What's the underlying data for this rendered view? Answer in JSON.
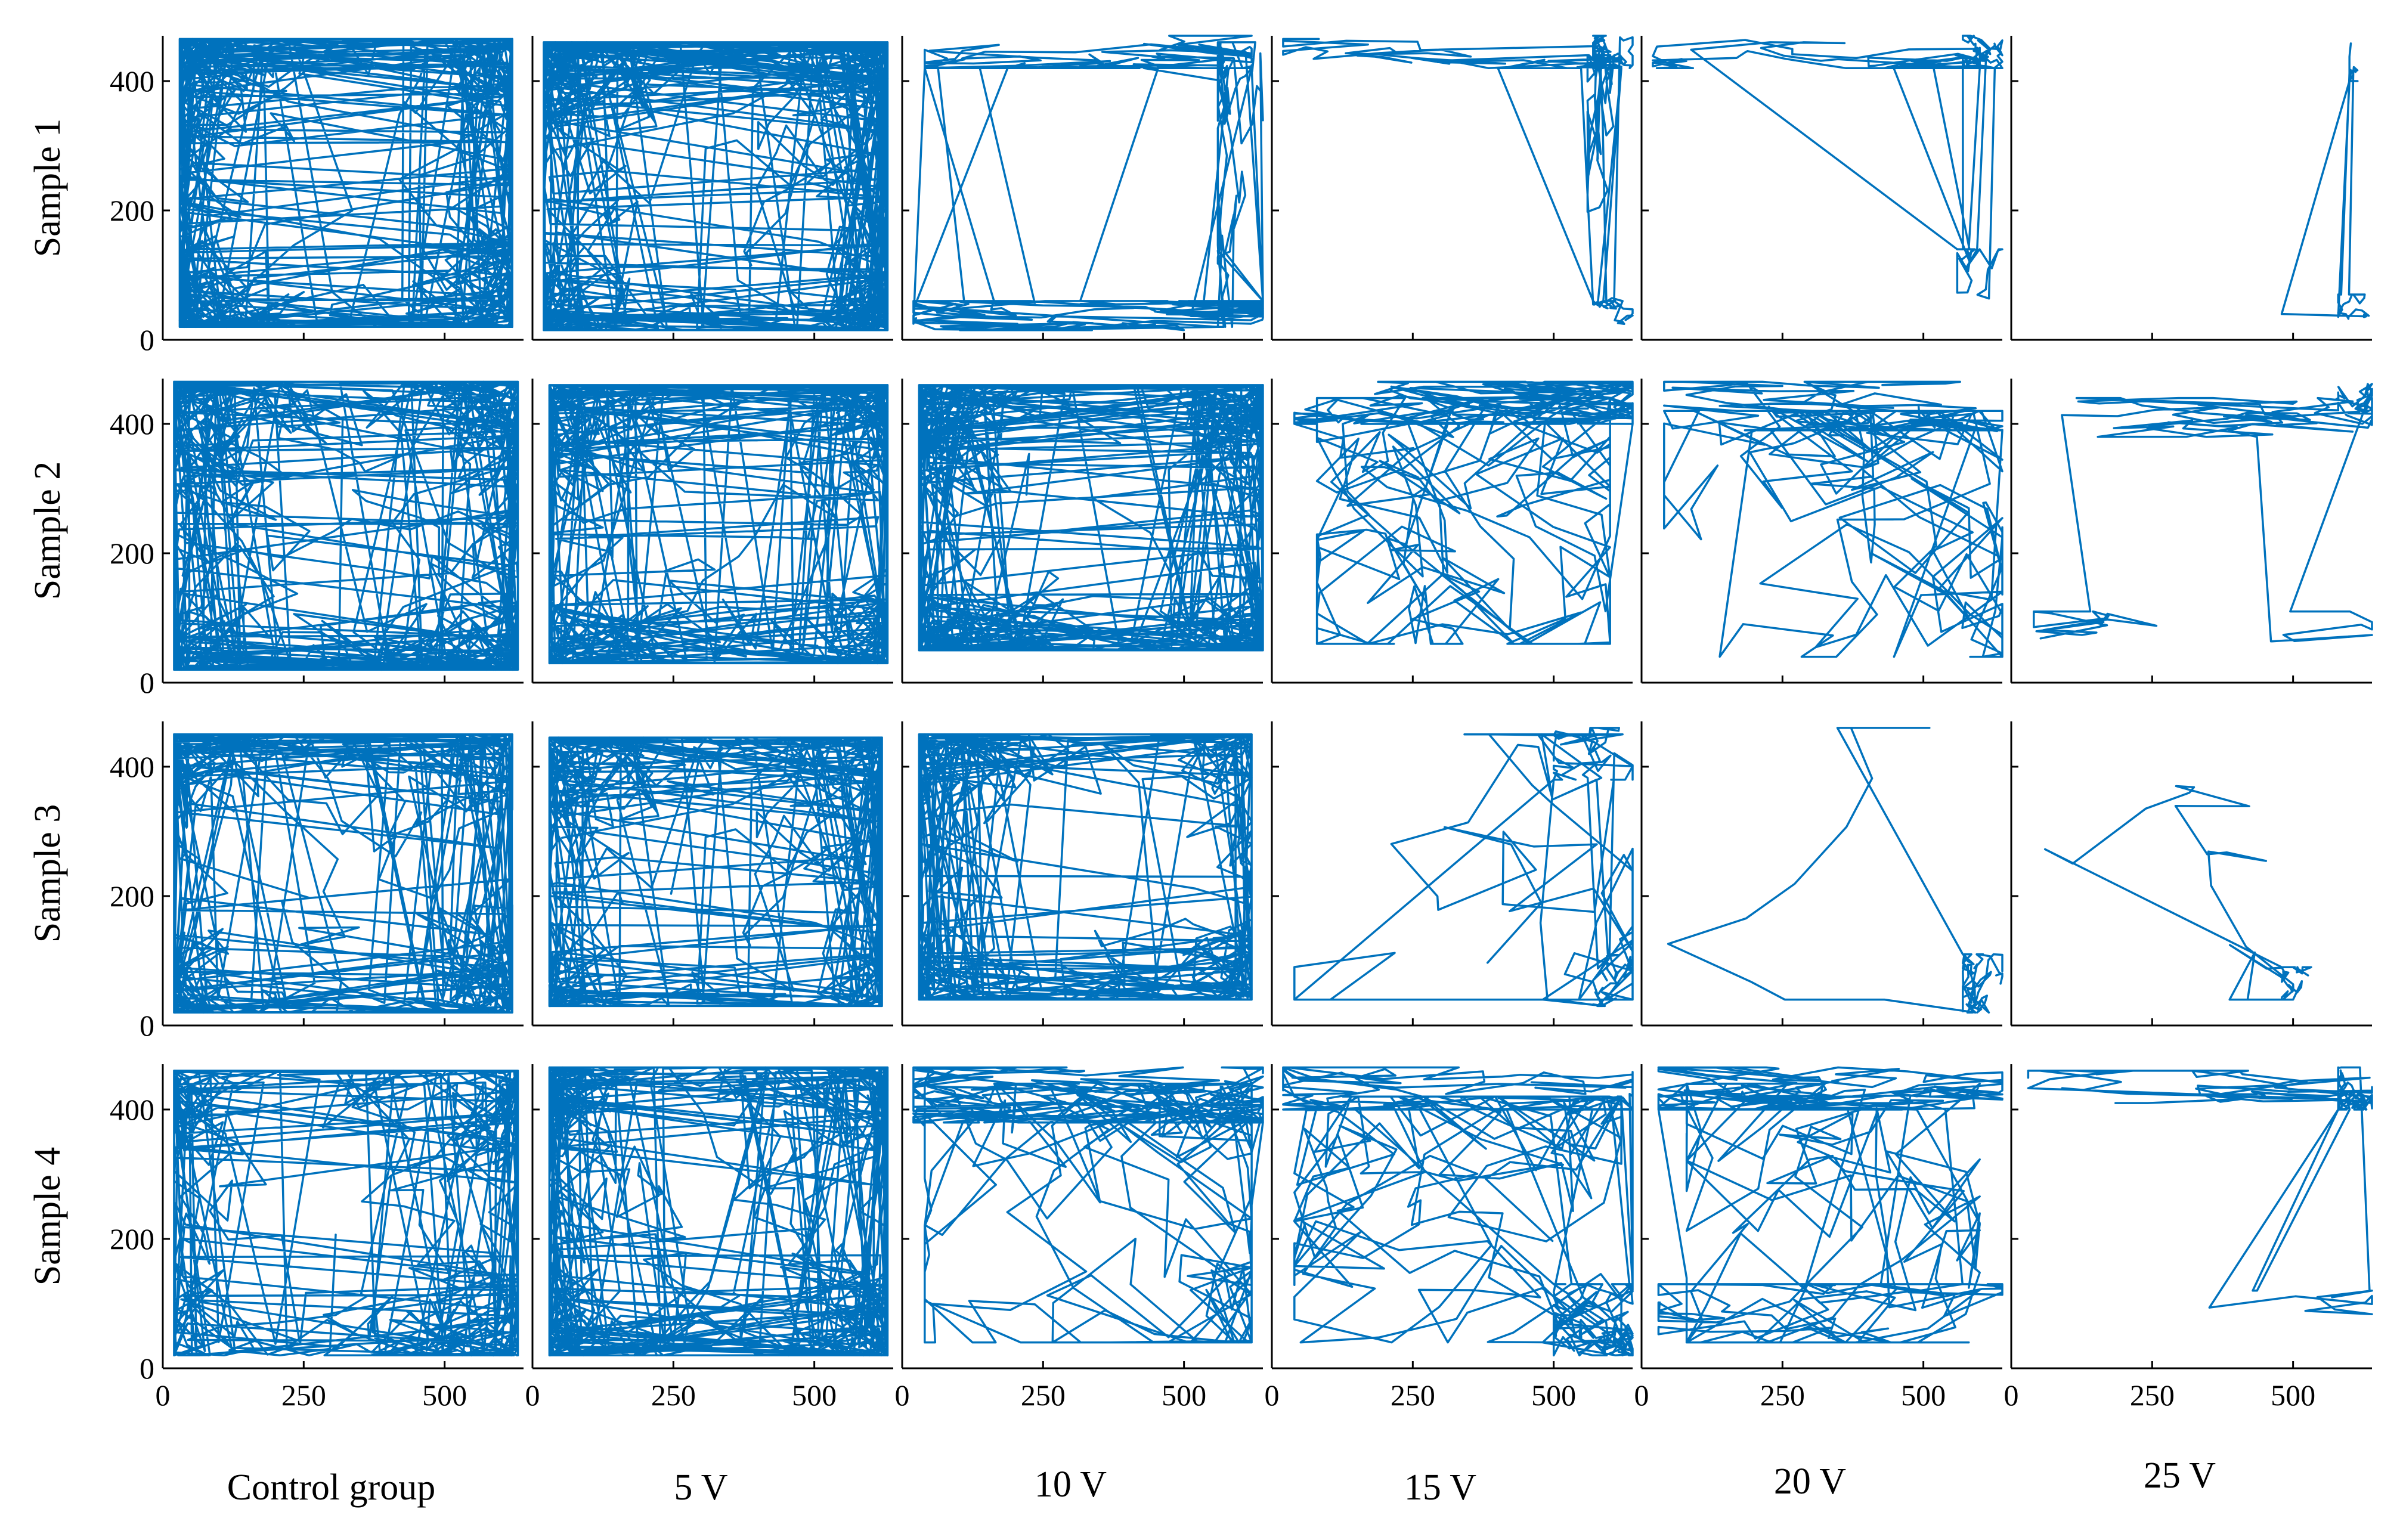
{
  "chart_data": {
    "type": "line",
    "title": "",
    "xlabel": "",
    "ylabel": "",
    "xlim": [
      0,
      640
    ],
    "ylim": [
      0,
      470
    ],
    "x_ticks": [
      "0",
      "250",
      "500"
    ],
    "y_ticks": [
      "0",
      "200",
      "400"
    ],
    "line_color": "#0072BD",
    "grid": false,
    "legend": "none",
    "rows": [
      "Sample 1",
      "Sample 2",
      "Sample 3",
      "Sample 4"
    ],
    "columns": [
      "Control group",
      "5 V",
      "10 V",
      "15 V",
      "20 V",
      "25 V"
    ],
    "panels": [
      [
        {
          "seed": 11,
          "profile": "uniform",
          "n": 900,
          "x": [
            [
              30,
              620
            ]
          ],
          "y": [
            [
              20,
              465
            ]
          ]
        },
        {
          "seed": 12,
          "profile": "uniform",
          "n": 900,
          "x": [
            [
              20,
              630
            ]
          ],
          "y": [
            [
              15,
              460
            ]
          ]
        },
        {
          "seed": 13,
          "profile": "mixed",
          "n": 380,
          "x": [
            [
              560,
              640
            ],
            [
              20,
              640
            ],
            [
              40,
              620
            ]
          ],
          "y": [
            [
              20,
              460
            ],
            [
              15,
              60
            ],
            [
              420,
              470
            ]
          ]
        },
        {
          "seed": 14,
          "profile": "corner",
          "n": 240,
          "x": [
            [
              570,
              640
            ],
            [
              570,
              640
            ],
            [
              20,
              620
            ],
            [
              560,
              640
            ]
          ],
          "y": [
            [
              420,
              470
            ],
            [
              20,
              60
            ],
            [
              420,
              465
            ],
            [
              60,
              440
            ]
          ]
        },
        {
          "seed": 15,
          "profile": "corner",
          "n": 200,
          "x": [
            [
              570,
              640
            ],
            [
              560,
              640
            ],
            [
              20,
              600
            ]
          ],
          "y": [
            [
              420,
              470
            ],
            [
              20,
              140
            ],
            [
              420,
              470
            ]
          ]
        },
        {
          "seed": 16,
          "profile": "sparse",
          "n": 60,
          "x": [
            [
              600,
              640
            ],
            [
              580,
              640
            ],
            [
              40,
              600
            ]
          ],
          "y": [
            [
              400,
              470
            ],
            [
              20,
              70
            ],
            [
              40,
              460
            ]
          ]
        }
      ],
      [
        {
          "seed": 21,
          "profile": "uniform",
          "n": 850,
          "x": [
            [
              20,
              630
            ]
          ],
          "y": [
            [
              20,
              465
            ]
          ]
        },
        {
          "seed": 22,
          "profile": "uniform",
          "n": 700,
          "x": [
            [
              30,
              630
            ]
          ],
          "y": [
            [
              30,
              460
            ]
          ]
        },
        {
          "seed": 23,
          "profile": "uniform",
          "n": 800,
          "x": [
            [
              30,
              640
            ]
          ],
          "y": [
            [
              50,
              460
            ]
          ]
        },
        {
          "seed": 24,
          "profile": "band",
          "n": 420,
          "x": [
            [
              40,
              640
            ],
            [
              80,
              600
            ]
          ],
          "y": [
            [
              400,
              465
            ],
            [
              60,
              440
            ]
          ]
        },
        {
          "seed": 25,
          "profile": "band",
          "n": 280,
          "x": [
            [
              40,
              640
            ],
            [
              40,
              640
            ]
          ],
          "y": [
            [
              390,
              465
            ],
            [
              40,
              420
            ]
          ]
        },
        {
          "seed": 26,
          "profile": "sparse",
          "n": 140,
          "x": [
            [
              580,
              640
            ],
            [
              40,
              640
            ],
            [
              40,
              640
            ]
          ],
          "y": [
            [
              400,
              465
            ],
            [
              380,
              440
            ],
            [
              40,
              110
            ]
          ]
        }
      ],
      [
        {
          "seed": 31,
          "profile": "uniform",
          "n": 600,
          "x": [
            [
              20,
              620
            ]
          ],
          "y": [
            [
              20,
              450
            ]
          ]
        },
        {
          "seed": 32,
          "profile": "uniform",
          "n": 650,
          "x": [
            [
              30,
              620
            ]
          ],
          "y": [
            [
              30,
              445
            ]
          ]
        },
        {
          "seed": 33,
          "profile": "uniform",
          "n": 600,
          "x": [
            [
              30,
              620
            ]
          ],
          "y": [
            [
              40,
              450
            ]
          ]
        },
        {
          "seed": 34,
          "profile": "corner",
          "n": 170,
          "x": [
            [
              570,
              640
            ],
            [
              40,
              640
            ],
            [
              500,
              640
            ]
          ],
          "y": [
            [
              30,
              110
            ],
            [
              40,
              450
            ],
            [
              380,
              460
            ]
          ]
        },
        {
          "seed": 35,
          "profile": "corner",
          "n": 90,
          "x": [
            [
              570,
              640
            ],
            [
              40,
              600
            ]
          ],
          "y": [
            [
              20,
              110
            ],
            [
              40,
              460
            ]
          ]
        },
        {
          "seed": 36,
          "profile": "corner",
          "n": 60,
          "x": [
            [
              480,
              540
            ],
            [
              60,
              500
            ]
          ],
          "y": [
            [
              40,
              90
            ],
            [
              40,
              370
            ]
          ]
        }
      ],
      [
        {
          "seed": 41,
          "profile": "uniform",
          "n": 560,
          "x": [
            [
              20,
              630
            ]
          ],
          "y": [
            [
              20,
              460
            ]
          ]
        },
        {
          "seed": 42,
          "profile": "uniform",
          "n": 760,
          "x": [
            [
              30,
              630
            ]
          ],
          "y": [
            [
              20,
              465
            ]
          ]
        },
        {
          "seed": 43,
          "profile": "band",
          "n": 480,
          "x": [
            [
              20,
              640
            ],
            [
              40,
              620
            ]
          ],
          "y": [
            [
              380,
              465
            ],
            [
              40,
              440
            ]
          ]
        },
        {
          "seed": 44,
          "profile": "band",
          "n": 480,
          "x": [
            [
              20,
              640
            ],
            [
              500,
              640
            ],
            [
              40,
              620
            ]
          ],
          "y": [
            [
              400,
              465
            ],
            [
              20,
              130
            ],
            [
              40,
              420
            ]
          ]
        },
        {
          "seed": 45,
          "profile": "band",
          "n": 380,
          "x": [
            [
              30,
              640
            ],
            [
              30,
              640
            ],
            [
              80,
              600
            ]
          ],
          "y": [
            [
              400,
              465
            ],
            [
              20,
              130
            ],
            [
              40,
              440
            ]
          ]
        },
        {
          "seed": 46,
          "profile": "sparse",
          "n": 180,
          "x": [
            [
              580,
              640
            ],
            [
              30,
              640
            ],
            [
              30,
              640
            ]
          ],
          "y": [
            [
              400,
              465
            ],
            [
              410,
              460
            ],
            [
              30,
              120
            ]
          ]
        }
      ]
    ]
  }
}
